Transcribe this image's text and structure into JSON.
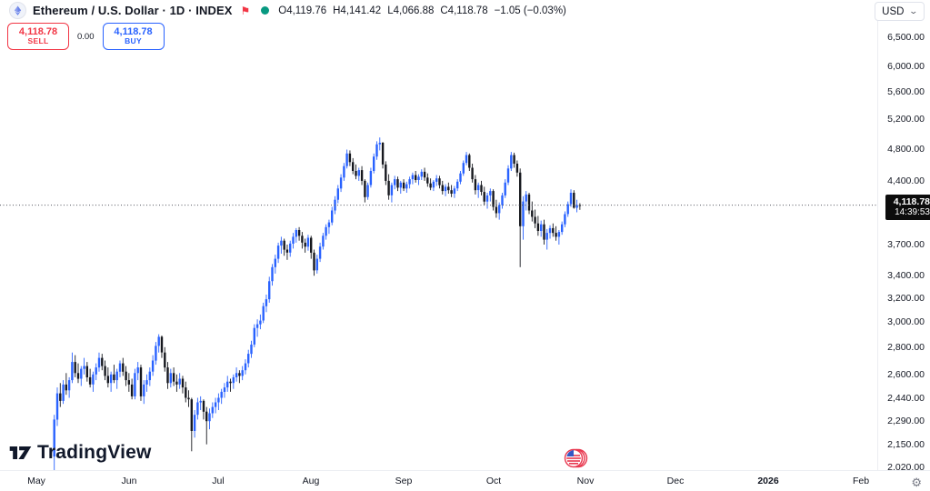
{
  "toolbar": {
    "symbol_title": "Ethereum / U.S. Dollar · 1D · INDEX",
    "ohlc": [
      "O4,119.76",
      "H4,141.42",
      "L4,066.88",
      "C4,118.78",
      "−1.05 (−0.03%)"
    ],
    "currency_button": "USD"
  },
  "trade_panel": {
    "sell_price": "4,118.78",
    "sell_label": "SELL",
    "spread": "0.00",
    "buy_price": "4,118.78",
    "buy_label": "BUY"
  },
  "price_label": {
    "price": "4,118.78",
    "countdown": "14:39:53"
  },
  "watermark": {
    "text": "TradingView"
  },
  "colors": {
    "up": "#2962ff",
    "down": "#16181e",
    "sell_red": "#f23645",
    "buy_blue": "#2962ff",
    "open_dot_green": "#089981",
    "price_line": "#50535e",
    "label_bg": "#0c0c0c"
  },
  "chart_data": {
    "type": "candlestick",
    "title": "Ethereum / U.S. Dollar, 1D, INDEX",
    "scale": "log",
    "grid": false,
    "last_price": 4118.78,
    "y_ticks": [
      "6,500.00",
      "6,000.00",
      "5,600.00",
      "5,200.00",
      "4,800.00",
      "4,400.00",
      "3,700.00",
      "3,400.00",
      "3,200.00",
      "3,000.00",
      "2,800.00",
      "2,600.00",
      "2,440.00",
      "2,290.00",
      "2,150.00",
      "2,020.00"
    ],
    "x_ticks": [
      {
        "label": "May",
        "day": 0
      },
      {
        "label": "Jun",
        "day": 31
      },
      {
        "label": "Jul",
        "day": 61
      },
      {
        "label": "Aug",
        "day": 92
      },
      {
        "label": "Sep",
        "day": 123
      },
      {
        "label": "Oct",
        "day": 153
      },
      {
        "label": "Nov",
        "day": 184
      },
      {
        "label": "Dec",
        "day": 214
      },
      {
        "label": "2026",
        "day": 245,
        "bold": true
      },
      {
        "label": "Feb",
        "day": 276
      }
    ],
    "start_day_offset": 6,
    "candles": [
      [
        2080,
        2330,
        2000,
        2300
      ],
      [
        2300,
        2510,
        2260,
        2470
      ],
      [
        2470,
        2540,
        2380,
        2420
      ],
      [
        2420,
        2560,
        2400,
        2530
      ],
      [
        2530,
        2610,
        2460,
        2490
      ],
      [
        2490,
        2580,
        2440,
        2560
      ],
      [
        2560,
        2760,
        2540,
        2690
      ],
      [
        2690,
        2740,
        2580,
        2610
      ],
      [
        2610,
        2680,
        2540,
        2570
      ],
      [
        2570,
        2660,
        2520,
        2640
      ],
      [
        2640,
        2720,
        2600,
        2660
      ],
      [
        2660,
        2690,
        2550,
        2580
      ],
      [
        2580,
        2640,
        2510,
        2530
      ],
      [
        2530,
        2620,
        2480,
        2600
      ],
      [
        2600,
        2680,
        2560,
        2650
      ],
      [
        2650,
        2760,
        2620,
        2720
      ],
      [
        2720,
        2750,
        2630,
        2660
      ],
      [
        2660,
        2700,
        2560,
        2590
      ],
      [
        2590,
        2650,
        2510,
        2540
      ],
      [
        2540,
        2620,
        2480,
        2600
      ],
      [
        2600,
        2670,
        2540,
        2560
      ],
      [
        2560,
        2640,
        2500,
        2620
      ],
      [
        2620,
        2700,
        2580,
        2680
      ],
      [
        2680,
        2720,
        2590,
        2620
      ],
      [
        2620,
        2660,
        2520,
        2560
      ],
      [
        2560,
        2610,
        2480,
        2530
      ],
      [
        2530,
        2570,
        2430,
        2450
      ],
      [
        2450,
        2640,
        2430,
        2610
      ],
      [
        2610,
        2690,
        2560,
        2650
      ],
      [
        2650,
        2670,
        2420,
        2450
      ],
      [
        2450,
        2560,
        2400,
        2530
      ],
      [
        2530,
        2600,
        2480,
        2560
      ],
      [
        2560,
        2650,
        2520,
        2620
      ],
      [
        2620,
        2740,
        2590,
        2700
      ],
      [
        2700,
        2840,
        2670,
        2810
      ],
      [
        2810,
        2900,
        2760,
        2880
      ],
      [
        2880,
        2890,
        2720,
        2760
      ],
      [
        2760,
        2800,
        2620,
        2650
      ],
      [
        2650,
        2690,
        2500,
        2540
      ],
      [
        2540,
        2640,
        2510,
        2610
      ],
      [
        2610,
        2650,
        2520,
        2550
      ],
      [
        2550,
        2600,
        2480,
        2530
      ],
      [
        2530,
        2610,
        2500,
        2570
      ],
      [
        2570,
        2590,
        2470,
        2510
      ],
      [
        2510,
        2550,
        2410,
        2440
      ],
      [
        2440,
        2490,
        2380,
        2430
      ],
      [
        2430,
        2440,
        2110,
        2230
      ],
      [
        2230,
        2360,
        2190,
        2330
      ],
      [
        2330,
        2440,
        2300,
        2410
      ],
      [
        2410,
        2450,
        2360,
        2420
      ],
      [
        2420,
        2430,
        2300,
        2350
      ],
      [
        2350,
        2380,
        2150,
        2290
      ],
      [
        2290,
        2370,
        2240,
        2340
      ],
      [
        2340,
        2410,
        2310,
        2380
      ],
      [
        2380,
        2440,
        2340,
        2410
      ],
      [
        2410,
        2470,
        2360,
        2440
      ],
      [
        2440,
        2500,
        2400,
        2480
      ],
      [
        2480,
        2540,
        2440,
        2510
      ],
      [
        2510,
        2590,
        2480,
        2550
      ],
      [
        2550,
        2570,
        2480,
        2540
      ],
      [
        2540,
        2600,
        2500,
        2580
      ],
      [
        2580,
        2650,
        2550,
        2610
      ],
      [
        2610,
        2630,
        2540,
        2590
      ],
      [
        2590,
        2660,
        2560,
        2630
      ],
      [
        2630,
        2710,
        2600,
        2680
      ],
      [
        2680,
        2780,
        2650,
        2750
      ],
      [
        2750,
        2850,
        2720,
        2820
      ],
      [
        2820,
        2980,
        2800,
        2950
      ],
      [
        2950,
        3020,
        2880,
        2980
      ],
      [
        2980,
        3060,
        2940,
        3010
      ],
      [
        3010,
        3160,
        2990,
        3130
      ],
      [
        3130,
        3230,
        3080,
        3190
      ],
      [
        3190,
        3390,
        3160,
        3350
      ],
      [
        3350,
        3510,
        3310,
        3480
      ],
      [
        3480,
        3600,
        3420,
        3560
      ],
      [
        3560,
        3720,
        3520,
        3690
      ],
      [
        3690,
        3780,
        3610,
        3740
      ],
      [
        3740,
        3760,
        3590,
        3650
      ],
      [
        3650,
        3700,
        3550,
        3620
      ],
      [
        3620,
        3740,
        3580,
        3710
      ],
      [
        3710,
        3820,
        3660,
        3780
      ],
      [
        3780,
        3870,
        3720,
        3850
      ],
      [
        3850,
        3880,
        3740,
        3790
      ],
      [
        3790,
        3830,
        3660,
        3720
      ],
      [
        3720,
        3760,
        3620,
        3680
      ],
      [
        3680,
        3800,
        3640,
        3770
      ],
      [
        3770,
        3790,
        3560,
        3620
      ],
      [
        3620,
        3650,
        3400,
        3450
      ],
      [
        3450,
        3600,
        3420,
        3560
      ],
      [
        3560,
        3720,
        3530,
        3680
      ],
      [
        3680,
        3820,
        3650,
        3790
      ],
      [
        3790,
        3910,
        3750,
        3880
      ],
      [
        3880,
        3960,
        3810,
        3930
      ],
      [
        3930,
        4100,
        3900,
        4060
      ],
      [
        4060,
        4220,
        4020,
        4180
      ],
      [
        4180,
        4350,
        4140,
        4310
      ],
      [
        4310,
        4480,
        4270,
        4440
      ],
      [
        4440,
        4620,
        4400,
        4580
      ],
      [
        4580,
        4790,
        4550,
        4740
      ],
      [
        4740,
        4780,
        4580,
        4630
      ],
      [
        4630,
        4680,
        4480,
        4520
      ],
      [
        4520,
        4600,
        4420,
        4460
      ],
      [
        4460,
        4560,
        4400,
        4530
      ],
      [
        4530,
        4580,
        4350,
        4400
      ],
      [
        4400,
        4420,
        4150,
        4210
      ],
      [
        4210,
        4380,
        4180,
        4350
      ],
      [
        4350,
        4560,
        4320,
        4520
      ],
      [
        4520,
        4740,
        4490,
        4700
      ],
      [
        4700,
        4900,
        4660,
        4860
      ],
      [
        4860,
        4950,
        4780,
        4880
      ],
      [
        4880,
        4890,
        4550,
        4600
      ],
      [
        4600,
        4640,
        4350,
        4400
      ],
      [
        4400,
        4480,
        4180,
        4230
      ],
      [
        4230,
        4380,
        4150,
        4350
      ],
      [
        4350,
        4460,
        4300,
        4420
      ],
      [
        4420,
        4450,
        4280,
        4320
      ],
      [
        4320,
        4400,
        4250,
        4380
      ],
      [
        4380,
        4420,
        4280,
        4310
      ],
      [
        4310,
        4390,
        4260,
        4360
      ],
      [
        4360,
        4450,
        4310,
        4420
      ],
      [
        4420,
        4500,
        4360,
        4470
      ],
      [
        4470,
        4520,
        4380,
        4410
      ],
      [
        4410,
        4480,
        4350,
        4450
      ],
      [
        4450,
        4540,
        4410,
        4510
      ],
      [
        4510,
        4560,
        4400,
        4440
      ],
      [
        4440,
        4490,
        4330,
        4370
      ],
      [
        4370,
        4430,
        4290,
        4320
      ],
      [
        4320,
        4410,
        4280,
        4390
      ],
      [
        4390,
        4470,
        4340,
        4430
      ],
      [
        4430,
        4460,
        4310,
        4350
      ],
      [
        4350,
        4400,
        4240,
        4280
      ],
      [
        4280,
        4360,
        4220,
        4330
      ],
      [
        4330,
        4380,
        4250,
        4290
      ],
      [
        4290,
        4350,
        4210,
        4250
      ],
      [
        4250,
        4340,
        4200,
        4310
      ],
      [
        4310,
        4420,
        4280,
        4390
      ],
      [
        4390,
        4520,
        4360,
        4490
      ],
      [
        4490,
        4650,
        4460,
        4620
      ],
      [
        4620,
        4760,
        4590,
        4720
      ],
      [
        4720,
        4740,
        4520,
        4560
      ],
      [
        4560,
        4610,
        4380,
        4420
      ],
      [
        4420,
        4470,
        4240,
        4290
      ],
      [
        4290,
        4380,
        4200,
        4350
      ],
      [
        4350,
        4400,
        4230,
        4270
      ],
      [
        4270,
        4330,
        4120,
        4160
      ],
      [
        4160,
        4260,
        4080,
        4230
      ],
      [
        4230,
        4310,
        4160,
        4280
      ],
      [
        4280,
        4300,
        4060,
        4100
      ],
      [
        4100,
        4180,
        3980,
        4030
      ],
      [
        4030,
        4150,
        3960,
        4120
      ],
      [
        4120,
        4260,
        4080,
        4230
      ],
      [
        4230,
        4420,
        4200,
        4380
      ],
      [
        4380,
        4590,
        4350,
        4550
      ],
      [
        4550,
        4760,
        4520,
        4720
      ],
      [
        4720,
        4750,
        4560,
        4610
      ],
      [
        4610,
        4650,
        4450,
        4500
      ],
      [
        4500,
        4550,
        3480,
        3890
      ],
      [
        3890,
        4220,
        3750,
        4160
      ],
      [
        4160,
        4280,
        4060,
        4240
      ],
      [
        4240,
        4260,
        4020,
        4060
      ],
      [
        4060,
        4160,
        3940,
        3990
      ],
      [
        3990,
        4070,
        3870,
        3920
      ],
      [
        3920,
        4000,
        3790,
        3840
      ],
      [
        3840,
        3950,
        3780,
        3910
      ],
      [
        3910,
        3960,
        3700,
        3750
      ],
      [
        3750,
        3860,
        3650,
        3820
      ],
      [
        3820,
        3900,
        3760,
        3870
      ],
      [
        3870,
        3920,
        3780,
        3820
      ],
      [
        3820,
        3890,
        3740,
        3780
      ],
      [
        3780,
        3850,
        3700,
        3830
      ],
      [
        3830,
        3940,
        3800,
        3910
      ],
      [
        3910,
        4050,
        3880,
        4020
      ],
      [
        4020,
        4160,
        3990,
        4130
      ],
      [
        4130,
        4300,
        4100,
        4260
      ],
      [
        4260,
        4290,
        4080,
        4090
      ],
      [
        4090,
        4180,
        4040,
        4120
      ],
      [
        4120,
        4141,
        4067,
        4119
      ]
    ]
  }
}
